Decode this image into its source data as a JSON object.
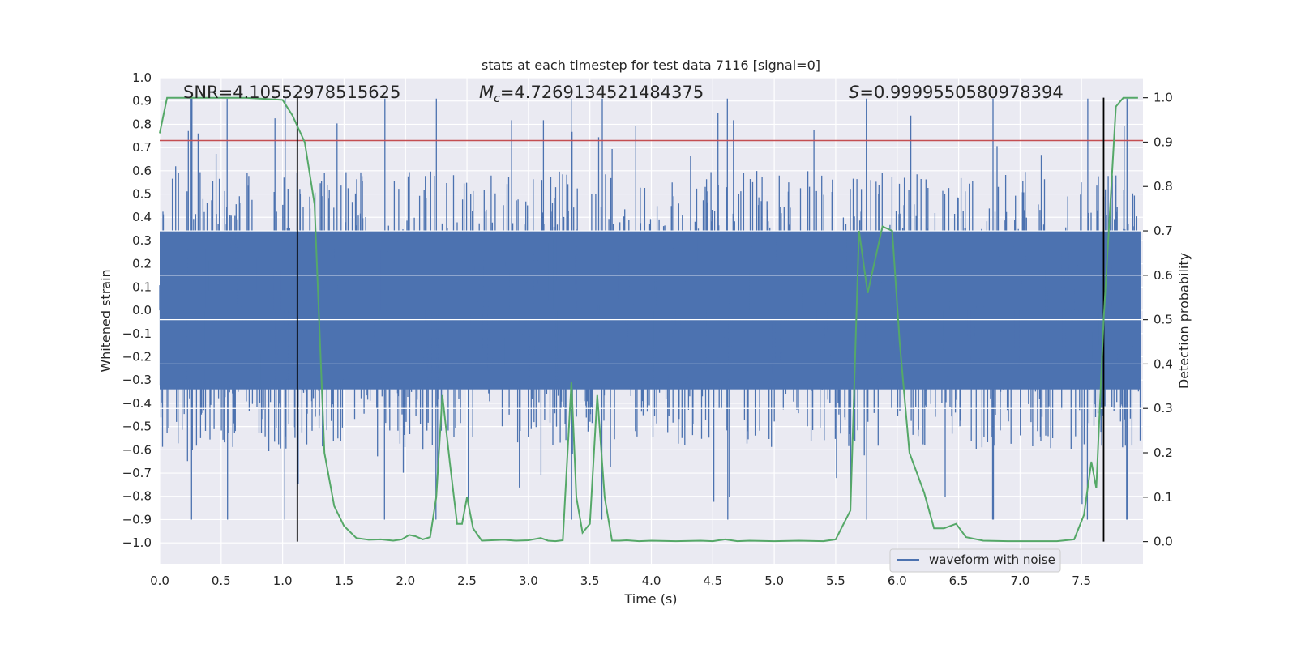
{
  "chart_data": {
    "type": "line",
    "title": "stats at each timestep for test data 7116 [signal=0]",
    "xlabel": "Time (s)",
    "ylabel": "Whitened strain",
    "y2label": "Detection probability",
    "xlim": [
      0,
      8.0
    ],
    "ylim": [
      -1.09,
      1.0
    ],
    "y2lim": [
      -0.05,
      1.045
    ],
    "x_ticks": [
      0.0,
      0.5,
      1.0,
      1.5,
      2.0,
      2.5,
      3.0,
      3.5,
      4.0,
      4.5,
      5.0,
      5.5,
      6.0,
      6.5,
      7.0,
      7.5
    ],
    "x_tick_labels": [
      "0.0",
      "0.5",
      "1.0",
      "1.5",
      "2.0",
      "2.5",
      "3.0",
      "3.5",
      "4.0",
      "4.5",
      "5.0",
      "5.5",
      "6.0",
      "6.5",
      "7.0",
      "7.5"
    ],
    "y_ticks": [
      1.0,
      0.9,
      0.8,
      0.7,
      0.6,
      0.5,
      0.4,
      0.3,
      0.2,
      0.1,
      0.0,
      -0.1,
      -0.2,
      -0.3,
      -0.4,
      -0.5,
      -0.6,
      -0.7,
      -0.8,
      -0.9,
      -1.0
    ],
    "y_tick_labels": [
      "1.0",
      "0.9",
      "0.8",
      "0.7",
      "0.6",
      "0.5",
      "0.4",
      "0.3",
      "0.2",
      "0.1",
      "0.0",
      "−0.1",
      "−0.2",
      "−0.3",
      "−0.4",
      "−0.5",
      "−0.6",
      "−0.7",
      "−0.8",
      "−0.9",
      "−1.0"
    ],
    "y2_ticks": [
      1.0,
      0.9,
      0.8,
      0.7,
      0.6,
      0.5,
      0.4,
      0.3,
      0.2,
      0.1,
      0.0
    ],
    "y2_tick_labels": [
      "1.0",
      "0.9",
      "0.8",
      "0.7",
      "0.6",
      "0.5",
      "0.4",
      "0.3",
      "0.2",
      "0.1",
      "0.0"
    ],
    "annotations": {
      "snr": "SNR=4.105529785156250",
      "snr_display": "SNR=4.10552978515625",
      "mc_symbol": "M",
      "mc_sub": "c",
      "mc_value": "=4.7269134521484375",
      "s_symbol": "S",
      "s_value": "=0.9999550580978394"
    },
    "threshold_line": {
      "y": 0.73,
      "color": "#c44e52"
    },
    "vertical_lines": [
      1.12,
      7.68
    ],
    "legend": {
      "label": "waveform with noise",
      "placement": "lower-right"
    },
    "series": [
      {
        "name": "waveform with noise",
        "axis": "left",
        "color": "#4c72b0",
        "envelope": {
          "core_amplitude": 0.34,
          "typical_peak": 0.55,
          "max_peak": 0.91,
          "min_trough": -1.0,
          "spike_times": [
            0.26,
            0.55,
            1.02,
            1.83,
            2.25,
            3.35,
            3.6,
            4.62,
            5.75,
            6.78,
            7.55,
            7.87
          ]
        }
      },
      {
        "name": "detection probability",
        "axis": "right",
        "color": "#55a868",
        "x": [
          0.0,
          0.06,
          0.15,
          0.3,
          0.5,
          0.7,
          1.0,
          1.08,
          1.18,
          1.26,
          1.34,
          1.42,
          1.5,
          1.6,
          1.7,
          1.8,
          1.9,
          1.97,
          2.03,
          2.08,
          2.14,
          2.2,
          2.25,
          2.3,
          2.36,
          2.42,
          2.46,
          2.5,
          2.55,
          2.62,
          2.7,
          2.8,
          2.9,
          3.0,
          3.1,
          3.16,
          3.22,
          3.28,
          3.35,
          3.39,
          3.44,
          3.5,
          3.56,
          3.62,
          3.68,
          3.74,
          3.8,
          3.9,
          4.0,
          4.2,
          4.4,
          4.5,
          4.6,
          4.7,
          4.8,
          5.0,
          5.2,
          5.4,
          5.5,
          5.62,
          5.69,
          5.76,
          5.88,
          5.96,
          6.02,
          6.1,
          6.22,
          6.3,
          6.38,
          6.48,
          6.56,
          6.7,
          6.9,
          7.1,
          7.3,
          7.44,
          7.52,
          7.58,
          7.62,
          7.68,
          7.78,
          7.84,
          7.96
        ],
        "values": [
          0.92,
          1.0,
          1.0,
          1.0,
          1.0,
          1.0,
          0.995,
          0.96,
          0.9,
          0.76,
          0.2,
          0.08,
          0.035,
          0.008,
          0.004,
          0.005,
          0.002,
          0.005,
          0.015,
          0.012,
          0.005,
          0.01,
          0.1,
          0.33,
          0.18,
          0.04,
          0.04,
          0.1,
          0.03,
          0.002,
          0.003,
          0.004,
          0.002,
          0.003,
          0.008,
          0.002,
          0.001,
          0.003,
          0.36,
          0.1,
          0.02,
          0.04,
          0.33,
          0.1,
          0.002,
          0.002,
          0.003,
          0.001,
          0.002,
          0.001,
          0.002,
          0.001,
          0.005,
          0.001,
          0.002,
          0.001,
          0.002,
          0.001,
          0.005,
          0.07,
          0.7,
          0.56,
          0.71,
          0.7,
          0.45,
          0.2,
          0.11,
          0.03,
          0.03,
          0.04,
          0.01,
          0.002,
          0.001,
          0.001,
          0.001,
          0.005,
          0.06,
          0.18,
          0.12,
          0.5,
          0.98,
          1.0,
          1.0
        ]
      }
    ]
  }
}
